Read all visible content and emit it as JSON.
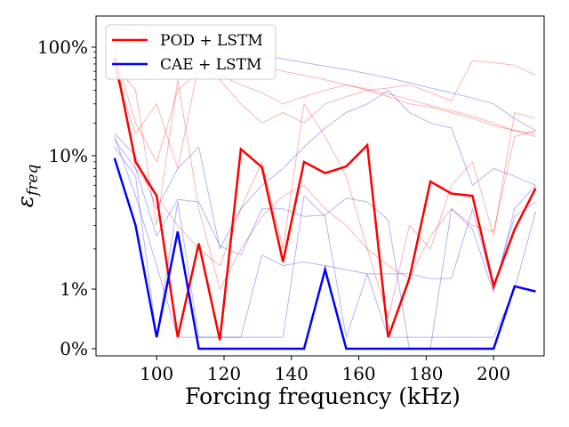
{
  "chart_data": {
    "type": "line",
    "title": "",
    "xlabel": "Forcing frequency (kHz)",
    "ylabel": "ε_freq",
    "ylabel_main": "ε",
    "ylabel_sub": "freq",
    "xlim": [
      82,
      215
    ],
    "ylim_display": [
      0,
      200
    ],
    "y_scale": "symlog-style percent scale",
    "x_ticks": [
      100,
      120,
      140,
      160,
      180,
      200
    ],
    "y_ticks": [
      {
        "value": 0,
        "label": "0%"
      },
      {
        "value": 1,
        "label": "1%"
      },
      {
        "value": 10,
        "label": "10%"
      },
      {
        "value": 100,
        "label": "100%"
      }
    ],
    "grid": false,
    "legend_position": "top-left",
    "colors": {
      "pod": "#ff0000",
      "cae": "#0000ff"
    },
    "x": [
      87.5,
      93.75,
      100,
      106.25,
      112.5,
      118.75,
      125,
      131.25,
      137.5,
      143.75,
      150,
      156.25,
      162.5,
      168.75,
      175,
      181.25,
      187.5,
      193.75,
      200,
      206.25,
      212.5
    ],
    "series": [
      {
        "name": "POD + LSTM",
        "color": "#ff0000",
        "values": [
          80,
          9.0,
          5.0,
          0.05,
          2.2,
          0.03,
          11.5,
          8.2,
          1.6,
          9.0,
          7.4,
          8.3,
          12.5,
          0.05,
          1.2,
          6.4,
          5.2,
          5.0,
          1.05,
          2.8,
          5.7
        ]
      },
      {
        "name": "CAE + LSTM",
        "color": "#0000ff",
        "values": [
          9.6,
          3.0,
          0.05,
          2.7,
          0.0,
          0.0,
          0.0,
          0.0,
          0.0,
          0.0,
          1.4,
          0.0,
          0.0,
          0.0,
          0.0,
          0.0,
          0.0,
          0.0,
          0.0,
          1.05,
          0.93
        ]
      }
    ],
    "background_series": [
      {
        "color": "#ff0000",
        "values": [
          120,
          110,
          100,
          92,
          85,
          78,
          72,
          66,
          60,
          55,
          50,
          45,
          41,
          37,
          33,
          29,
          26,
          23,
          20,
          17,
          15
        ]
      },
      {
        "color": "#ff0000",
        "values": [
          90,
          20,
          9,
          40,
          60,
          55,
          45,
          38,
          30,
          35,
          40,
          45,
          40,
          35,
          30,
          28,
          25,
          22,
          19,
          17,
          16
        ]
      },
      {
        "color": "#ff0000",
        "values": [
          60,
          16,
          30,
          8,
          70,
          50,
          30,
          20,
          25,
          20,
          30,
          35,
          40,
          42,
          45,
          38,
          32,
          75,
          72,
          68,
          55
        ]
      },
      {
        "color": "#ff0000",
        "values": [
          110,
          8,
          5,
          3,
          2,
          1.5,
          4,
          9,
          2,
          30,
          15,
          7,
          2,
          0.3,
          3,
          2,
          6,
          9,
          2.5,
          25,
          22
        ]
      },
      {
        "color": "#ff0000",
        "values": [
          70,
          40,
          3,
          50,
          4,
          1,
          2,
          3.5,
          5,
          6,
          4,
          3,
          2,
          1.5,
          1.2,
          2.5,
          4,
          3,
          2.7,
          15,
          17
        ]
      },
      {
        "color": "#0000ff",
        "values": [
          150,
          140,
          130,
          120,
          110,
          100,
          92,
          85,
          78,
          72,
          67,
          62,
          57,
          52,
          47,
          42,
          38,
          34,
          30,
          22,
          17
        ]
      },
      {
        "color": "#0000ff",
        "values": [
          16,
          10,
          4,
          8,
          12,
          2,
          4,
          6,
          8,
          12,
          18,
          25,
          30,
          40,
          25,
          20,
          18,
          6,
          8,
          7,
          6
        ]
      },
      {
        "color": "#0000ff",
        "values": [
          14,
          8,
          2.5,
          4.7,
          4.5,
          2.1,
          1.8,
          4,
          4,
          3.5,
          3.6,
          4.8,
          4.5,
          3.3,
          0,
          0,
          4,
          2.8,
          0.9,
          4,
          6
        ]
      },
      {
        "color": "#0000ff",
        "values": [
          12,
          7,
          0.05,
          4.5,
          0.05,
          0.05,
          0.05,
          1.8,
          1.5,
          1.6,
          1.5,
          1.4,
          1.3,
          1.3,
          1.3,
          1.2,
          1.2,
          4,
          1.0,
          3.5,
          4.5
        ]
      },
      {
        "color": "#0000ff",
        "values": [
          15,
          5,
          1.5,
          0.05,
          0.05,
          0.05,
          0.05,
          0.05,
          0.05,
          5,
          3.5,
          0.05,
          1.3,
          0.05,
          0.05,
          0.05,
          0.05,
          0.05,
          0.05,
          1.0,
          3.8
        ]
      }
    ]
  }
}
